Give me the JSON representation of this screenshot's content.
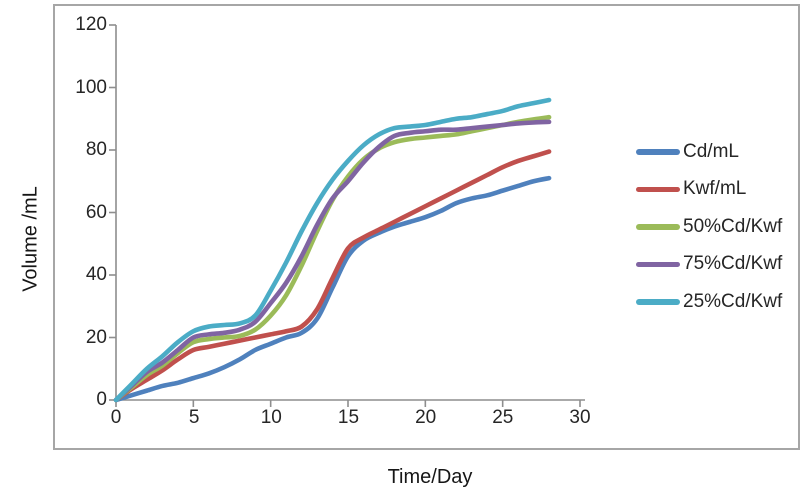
{
  "chart_data": {
    "type": "line",
    "title": "",
    "xlabel": "Time/Day",
    "ylabel": "Volume /mL",
    "xlim": [
      0,
      30
    ],
    "ylim": [
      0,
      120
    ],
    "x_ticks": [
      0,
      5,
      10,
      15,
      20,
      25,
      30
    ],
    "y_ticks": [
      0,
      20,
      40,
      60,
      80,
      100,
      120
    ],
    "grid": false,
    "legend_position": "right",
    "line_style": "smooth",
    "x": [
      0,
      1,
      2,
      3,
      4,
      5,
      6,
      7,
      8,
      9,
      10,
      11,
      12,
      13,
      14,
      15,
      16,
      17,
      18,
      19,
      20,
      21,
      22,
      23,
      24,
      25,
      26,
      27,
      28
    ],
    "series": [
      {
        "name": "Cd/mL",
        "color": "#4F81BD",
        "values": [
          0,
          1.5,
          3,
          4.5,
          5.5,
          7,
          8.5,
          10.5,
          13,
          16,
          18,
          20,
          21.5,
          26,
          36,
          46,
          51,
          53.5,
          55.5,
          57,
          58.5,
          60.5,
          63,
          64.5,
          65.5,
          67,
          68.5,
          70,
          71
        ]
      },
      {
        "name": "Kwf/mL",
        "color": "#C0504D",
        "values": [
          0,
          3.5,
          6.5,
          9.5,
          13,
          16,
          17,
          18,
          19,
          20,
          21,
          22,
          23.5,
          29,
          39,
          48.5,
          52,
          54.5,
          57,
          59.5,
          62,
          64.5,
          67,
          69.5,
          72,
          74.5,
          76.5,
          78,
          79.5
        ]
      },
      {
        "name": "50%Cd/Kwf",
        "color": "#9BBB59",
        "values": [
          0,
          4,
          8,
          11,
          15,
          18.5,
          19.5,
          20,
          20.5,
          22.5,
          27,
          33.5,
          43,
          54,
          64,
          71.5,
          77,
          80.5,
          82.5,
          83.5,
          84,
          84.5,
          85,
          86,
          87,
          88,
          89,
          89.8,
          90.5
        ]
      },
      {
        "name": "75%Cd/Kwf",
        "color": "#8064A2",
        "values": [
          0,
          4.5,
          9,
          12,
          16,
          20,
          21,
          21.5,
          22.5,
          25,
          31,
          37.5,
          46,
          56,
          64.5,
          70,
          76,
          81,
          84.5,
          85.5,
          86,
          86.5,
          86.5,
          87,
          87.5,
          88,
          88.5,
          88.8,
          89
        ]
      },
      {
        "name": "25%Cd/Kwf",
        "color": "#4BACC6",
        "values": [
          0,
          5,
          10,
          14,
          18.5,
          22,
          23.5,
          24,
          24.5,
          27,
          35,
          44,
          54,
          63,
          70.5,
          76.5,
          81.5,
          85,
          87,
          87.5,
          88,
          89,
          90,
          90.5,
          91.5,
          92.5,
          94,
          95,
          96
        ]
      }
    ]
  },
  "style_colors": {
    "frame_border": "#a6a6a6",
    "axis": "#8e8e8e",
    "text": "#262626"
  }
}
